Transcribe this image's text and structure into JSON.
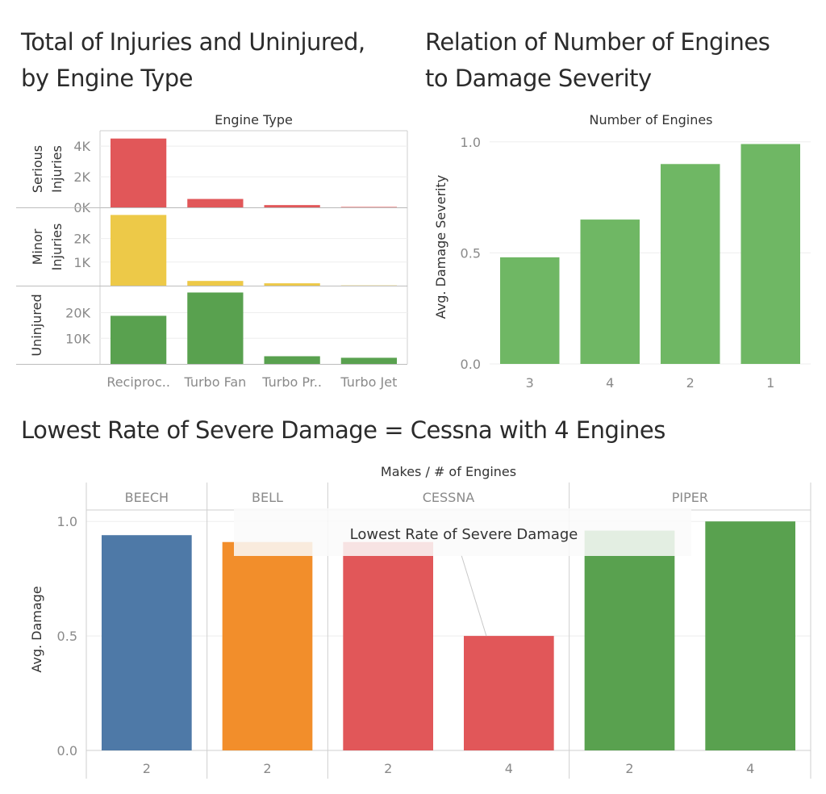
{
  "titles": {
    "injuries_line1": "Total of Injuries and Uninjured,",
    "injuries_line2": "by Engine Type",
    "engines_line1": "Relation of Number of Engines",
    "engines_line2": "to Damage Severity",
    "makes": "Lowest Rate of Severe Damage = Cessna with 4 Engines"
  },
  "chart_data": [
    {
      "id": "injuries_by_engine_type",
      "type": "bar",
      "title": "Total of Injuries and Uninjured, by Engine Type",
      "column_header": "Engine Type",
      "categories": [
        "Reciproc..",
        "Turbo Fan",
        "Turbo Pr..",
        "Turbo Jet"
      ],
      "panels": [
        {
          "name": "Serious Injuries",
          "row_label_lines": [
            "Serious",
            "Injuries"
          ],
          "color": "#e15759",
          "values": [
            4500,
            550,
            150,
            30
          ],
          "ylim": [
            0,
            4800
          ],
          "ticks": [
            {
              "v": 0,
              "label": "0K"
            },
            {
              "v": 2000,
              "label": "2K"
            },
            {
              "v": 4000,
              "label": "4K"
            }
          ]
        },
        {
          "name": "Minor Injuries",
          "row_label_lines": [
            "Minor",
            "Injuries"
          ],
          "color": "#edc948",
          "values": [
            3000,
            200,
            100,
            10
          ],
          "ylim": [
            0,
            3150
          ],
          "ticks": [
            {
              "v": 1000,
              "label": "1K"
            },
            {
              "v": 2000,
              "label": "2K"
            }
          ]
        },
        {
          "name": "Uninjured",
          "row_label_lines": [
            "Uninjured"
          ],
          "color": "#59a14f",
          "values": [
            18800,
            27900,
            3000,
            2400
          ],
          "ylim": [
            0,
            29000
          ],
          "ticks": [
            {
              "v": 10000,
              "label": "10K"
            },
            {
              "v": 20000,
              "label": "20K"
            }
          ]
        }
      ]
    },
    {
      "id": "engines_vs_damage",
      "type": "bar",
      "title": "Relation of Number of Engines to Damage Severity",
      "column_header": "Number of Engines",
      "ylabel": "Avg. Damage Severity",
      "categories": [
        "3",
        "4",
        "2",
        "1"
      ],
      "values": [
        0.48,
        0.65,
        0.9,
        0.99
      ],
      "color": "#6fb764",
      "ylim": [
        0,
        1.05
      ],
      "ticks": [
        {
          "v": 0,
          "label": "0.0"
        },
        {
          "v": 0.5,
          "label": "0.5"
        },
        {
          "v": 1.0,
          "label": "1.0"
        }
      ]
    },
    {
      "id": "makes_by_engines",
      "type": "bar",
      "title": "Lowest Rate of Severe Damage = Cessna with 4 Engines",
      "column_header": "Makes  /  # of Engines",
      "ylabel": "Avg. Damage",
      "ylim": [
        0,
        1.05
      ],
      "ticks": [
        {
          "v": 0,
          "label": "0.0"
        },
        {
          "v": 0.5,
          "label": "0.5"
        },
        {
          "v": 1.0,
          "label": "1.0"
        }
      ],
      "groups": [
        {
          "make": "BEECH",
          "color": "#4e79a7",
          "bars": [
            {
              "engines": "2",
              "value": 0.94
            }
          ]
        },
        {
          "make": "BELL",
          "color": "#f28e2b",
          "bars": [
            {
              "engines": "2",
              "value": 0.91
            }
          ]
        },
        {
          "make": "CESSNA",
          "color": "#e15759",
          "bars": [
            {
              "engines": "2",
              "value": 0.91
            },
            {
              "engines": "4",
              "value": 0.5
            }
          ]
        },
        {
          "make": "PIPER",
          "color": "#59a14f",
          "bars": [
            {
              "engines": "2",
              "value": 0.96
            },
            {
              "engines": "4",
              "value": 1.0
            }
          ]
        }
      ],
      "annotation": {
        "text": "Lowest Rate of Severe Damage",
        "target_make": "CESSNA",
        "target_engines": "4"
      }
    }
  ]
}
